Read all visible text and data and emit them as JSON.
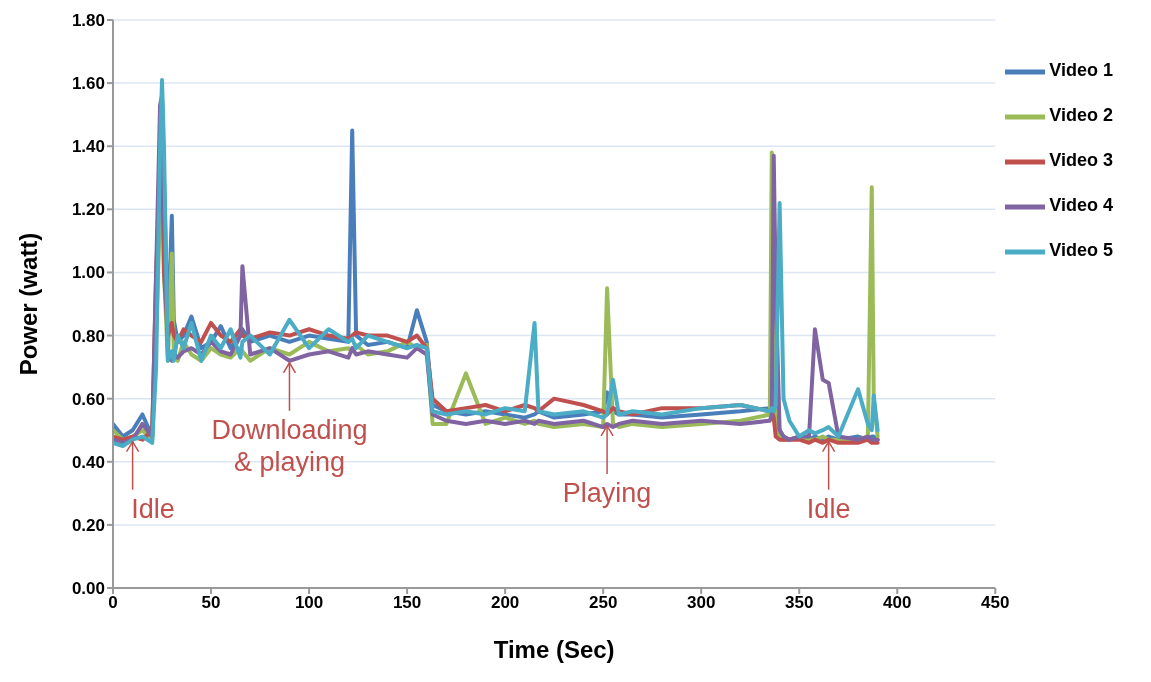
{
  "chart_data": {
    "type": "line",
    "xlabel": "Time (Sec)",
    "ylabel": "Power (watt)",
    "x": [
      0,
      5,
      10,
      15,
      20,
      22,
      24,
      25,
      26,
      28,
      30,
      31,
      33,
      36,
      40,
      45,
      50,
      55,
      60,
      65,
      66,
      70,
      80,
      90,
      100,
      110,
      120,
      122,
      124,
      130,
      140,
      150,
      155,
      160,
      163,
      170,
      180,
      190,
      200,
      210,
      215,
      217,
      225,
      240,
      250,
      252,
      255,
      258,
      265,
      280,
      300,
      320,
      335,
      336,
      337,
      338,
      340,
      342,
      345,
      350,
      355,
      358,
      362,
      365,
      370,
      380,
      385,
      387,
      388,
      390
    ],
    "series": [
      {
        "name": "Video 1",
        "color": "#4a7ebb",
        "values": [
          0.52,
          0.48,
          0.5,
          0.55,
          0.48,
          0.9,
          1.4,
          1.55,
          1.3,
          0.8,
          1.18,
          0.85,
          0.78,
          0.8,
          0.86,
          0.76,
          0.78,
          0.83,
          0.76,
          0.8,
          0.82,
          0.78,
          0.8,
          0.78,
          0.8,
          0.79,
          0.78,
          1.45,
          0.8,
          0.77,
          0.78,
          0.76,
          0.88,
          0.78,
          0.58,
          0.56,
          0.55,
          0.56,
          0.55,
          0.54,
          0.55,
          0.56,
          0.54,
          0.55,
          0.56,
          0.62,
          0.56,
          0.55,
          0.55,
          0.54,
          0.55,
          0.56,
          0.57,
          0.58,
          0.56,
          0.55,
          0.5,
          0.48,
          0.47,
          0.48,
          0.47,
          0.48,
          0.47,
          0.48,
          0.47,
          0.48,
          0.47,
          0.48,
          0.48,
          0.47
        ]
      },
      {
        "name": "Video 2",
        "color": "#9bbb59",
        "values": [
          0.5,
          0.47,
          0.48,
          0.5,
          0.47,
          0.8,
          1.2,
          1.3,
          1.0,
          0.72,
          1.06,
          0.75,
          0.72,
          0.78,
          0.74,
          0.72,
          0.76,
          0.74,
          0.73,
          0.76,
          0.75,
          0.72,
          0.76,
          0.74,
          0.78,
          0.75,
          0.76,
          0.75,
          0.77,
          0.74,
          0.75,
          0.78,
          0.76,
          0.77,
          0.52,
          0.52,
          0.68,
          0.52,
          0.54,
          0.52,
          0.53,
          0.52,
          0.51,
          0.52,
          0.51,
          0.95,
          0.52,
          0.51,
          0.52,
          0.51,
          0.52,
          0.53,
          0.55,
          1.38,
          0.8,
          0.5,
          0.48,
          0.47,
          0.47,
          0.48,
          0.47,
          0.47,
          0.48,
          0.47,
          0.47,
          0.47,
          0.48,
          1.27,
          0.6,
          0.48
        ]
      },
      {
        "name": "Video 3",
        "color": "#c0504d",
        "values": [
          0.48,
          0.47,
          0.48,
          0.47,
          0.5,
          1.0,
          1.3,
          1.4,
          1.0,
          0.8,
          0.84,
          0.8,
          0.78,
          0.82,
          0.8,
          0.78,
          0.84,
          0.8,
          0.78,
          0.82,
          0.8,
          0.79,
          0.81,
          0.8,
          0.82,
          0.8,
          0.79,
          0.8,
          0.81,
          0.8,
          0.8,
          0.78,
          0.8,
          0.76,
          0.6,
          0.56,
          0.57,
          0.58,
          0.56,
          0.58,
          0.57,
          0.56,
          0.6,
          0.58,
          0.56,
          0.55,
          0.57,
          0.56,
          0.55,
          0.57,
          0.57,
          0.58,
          0.56,
          0.56,
          0.54,
          0.48,
          0.47,
          0.47,
          0.47,
          0.47,
          0.46,
          0.47,
          0.46,
          0.47,
          0.46,
          0.46,
          0.47,
          0.46,
          0.46,
          0.46
        ]
      },
      {
        "name": "Video 4",
        "color": "#8064a2",
        "values": [
          0.47,
          0.46,
          0.47,
          0.52,
          0.48,
          1.0,
          1.53,
          1.56,
          1.2,
          0.74,
          0.72,
          0.74,
          0.73,
          0.75,
          0.76,
          0.74,
          0.78,
          0.75,
          0.74,
          0.8,
          1.02,
          0.74,
          0.76,
          0.72,
          0.74,
          0.75,
          0.73,
          0.76,
          0.74,
          0.75,
          0.74,
          0.73,
          0.76,
          0.74,
          0.55,
          0.53,
          0.52,
          0.53,
          0.52,
          0.53,
          0.52,
          0.53,
          0.52,
          0.53,
          0.51,
          0.52,
          0.51,
          0.52,
          0.53,
          0.52,
          0.53,
          0.52,
          0.53,
          0.55,
          1.37,
          0.95,
          0.5,
          0.48,
          0.47,
          0.48,
          0.48,
          0.82,
          0.66,
          0.65,
          0.48,
          0.47,
          0.48,
          0.47,
          0.47,
          0.47
        ]
      },
      {
        "name": "Video 5",
        "color": "#4bacc6",
        "values": [
          0.46,
          0.45,
          0.47,
          0.48,
          0.46,
          0.7,
          1.4,
          1.61,
          1.4,
          0.72,
          0.75,
          0.72,
          0.8,
          0.76,
          0.84,
          0.72,
          0.8,
          0.76,
          0.82,
          0.73,
          0.78,
          0.8,
          0.74,
          0.85,
          0.76,
          0.82,
          0.78,
          0.79,
          0.76,
          0.8,
          0.78,
          0.76,
          0.77,
          0.76,
          0.56,
          0.55,
          0.56,
          0.55,
          0.57,
          0.56,
          0.84,
          0.56,
          0.55,
          0.56,
          0.54,
          0.55,
          0.66,
          0.55,
          0.56,
          0.55,
          0.57,
          0.58,
          0.56,
          0.57,
          0.56,
          0.58,
          1.22,
          0.6,
          0.53,
          0.48,
          0.5,
          0.49,
          0.5,
          0.51,
          0.48,
          0.63,
          0.52,
          0.5,
          0.61,
          0.5
        ]
      }
    ],
    "xlim": [
      0,
      450
    ],
    "xticks": [
      0,
      50,
      100,
      150,
      200,
      250,
      300,
      350,
      400,
      450
    ],
    "ylim": [
      0,
      1.8
    ],
    "yticks": [
      {
        "value": 0,
        "label": "0.00"
      },
      {
        "value": 0.2,
        "label": "0.20"
      },
      {
        "value": 0.4,
        "label": "0.40"
      },
      {
        "value": 0.6,
        "label": "0.60"
      },
      {
        "value": 0.8,
        "label": "0.80"
      },
      {
        "value": 1.0,
        "label": "1.00"
      },
      {
        "value": 1.2,
        "label": "1.20"
      },
      {
        "value": 1.4,
        "label": "1.40"
      },
      {
        "value": 1.6,
        "label": "1.60"
      },
      {
        "value": 1.8,
        "label": "1.80"
      }
    ],
    "grid": "y",
    "legend": "top right",
    "marker": "none",
    "line_style": "solid",
    "annotations": [
      {
        "text": "Idle",
        "x": 10,
        "y": 0.47
      },
      {
        "text": "Downloading & playing",
        "x": 90,
        "y": 0.72
      },
      {
        "text": "Playing",
        "x": 252,
        "y": 0.52
      },
      {
        "text": "Idle",
        "x": 365,
        "y": 0.47
      }
    ]
  }
}
